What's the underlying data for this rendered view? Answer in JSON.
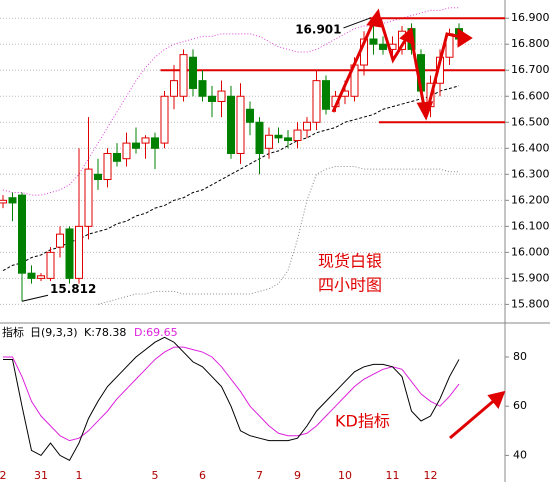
{
  "chart_data": {
    "type": "candlestick",
    "title": "现货白银",
    "subtitle": "四小时图",
    "categories": [
      "2",
      null,
      null,
      null,
      "31",
      null,
      null,
      null,
      "1",
      null,
      null,
      null,
      null,
      null,
      null,
      null,
      "5",
      null,
      null,
      null,
      null,
      "6",
      null,
      null,
      null,
      null,
      null,
      "7",
      null,
      null,
      null,
      "9",
      null,
      null,
      null,
      null,
      "10",
      null,
      null,
      null,
      null,
      "11",
      null,
      null,
      null,
      "12",
      null,
      null,
      null
    ],
    "open": [
      16.19,
      16.21,
      16.22,
      15.92,
      15.9,
      15.9,
      16.02,
      16.09,
      15.9,
      16.1,
      16.3,
      16.28,
      16.38,
      16.36,
      16.42,
      16.42,
      16.44,
      16.42,
      16.6,
      16.6,
      16.75,
      16.66,
      16.6,
      16.58,
      16.6,
      16.38,
      16.55,
      16.5,
      16.4,
      16.45,
      16.44,
      16.43,
      16.47,
      16.5,
      16.66,
      16.56,
      16.6,
      16.6,
      16.72,
      16.82,
      16.8,
      16.78,
      16.78,
      16.86,
      16.76,
      16.56,
      16.65,
      16.75,
      16.86
    ],
    "high": [
      16.22,
      16.23,
      16.23,
      15.95,
      15.92,
      16.02,
      16.1,
      16.1,
      16.4,
      16.52,
      16.36,
      16.4,
      16.42,
      16.46,
      16.48,
      16.45,
      16.46,
      16.62,
      16.72,
      16.78,
      16.78,
      16.7,
      16.64,
      16.66,
      16.64,
      16.65,
      16.58,
      16.52,
      16.48,
      16.48,
      16.47,
      16.5,
      16.52,
      16.7,
      16.68,
      16.62,
      16.66,
      16.75,
      16.85,
      16.901,
      16.83,
      16.83,
      16.87,
      16.88,
      16.78,
      16.68,
      16.78,
      16.86,
      16.88
    ],
    "low": [
      16.17,
      16.12,
      15.812,
      15.88,
      15.89,
      15.89,
      15.98,
      15.88,
      15.88,
      16.05,
      16.24,
      16.25,
      16.33,
      16.33,
      16.38,
      16.36,
      16.32,
      16.4,
      16.55,
      16.58,
      16.6,
      16.58,
      16.52,
      16.52,
      16.36,
      16.34,
      16.45,
      16.3,
      16.36,
      16.42,
      16.4,
      16.4,
      16.44,
      16.47,
      16.53,
      16.54,
      16.57,
      16.58,
      16.68,
      16.76,
      16.76,
      16.74,
      16.76,
      16.76,
      16.6,
      16.52,
      16.6,
      16.72,
      16.8
    ],
    "close": [
      16.2,
      16.19,
      15.92,
      15.9,
      15.91,
      16.0,
      16.07,
      15.9,
      16.1,
      16.32,
      16.28,
      16.38,
      16.35,
      16.42,
      16.4,
      16.44,
      16.4,
      16.6,
      16.66,
      16.76,
      16.63,
      16.6,
      16.58,
      16.62,
      16.38,
      16.6,
      16.5,
      16.38,
      16.45,
      16.44,
      16.43,
      16.47,
      16.5,
      16.66,
      16.55,
      16.6,
      16.62,
      16.72,
      16.82,
      16.8,
      16.78,
      16.8,
      16.85,
      16.78,
      16.62,
      16.65,
      16.75,
      16.84,
      16.82
    ],
    "high_labels": [
      null,
      null,
      null,
      null,
      null,
      null,
      null,
      null,
      null,
      null,
      null,
      null,
      null,
      null,
      null,
      null,
      null,
      null,
      null,
      null,
      null,
      null,
      null,
      null,
      null,
      null,
      null,
      null,
      null,
      null,
      null,
      null,
      null,
      null,
      null,
      null,
      null,
      null,
      null,
      "16.901",
      null,
      null,
      null,
      null,
      null,
      null,
      null,
      null,
      null
    ],
    "low_labels": [
      null,
      null,
      "15.812",
      null,
      null,
      null,
      null,
      null,
      null,
      null,
      null,
      null,
      null,
      null,
      null,
      null,
      null,
      null,
      null,
      null,
      null,
      null,
      null,
      null,
      null,
      null,
      null,
      null,
      null,
      null,
      null,
      null,
      null,
      null,
      null,
      null,
      null,
      null,
      null,
      null,
      null,
      null,
      null,
      null,
      null,
      null,
      null,
      null,
      null
    ],
    "up_color": "#e00000",
    "down_color": "#008000",
    "lines": [
      {
        "color": "#000000",
        "style": "dashed",
        "values": [
          15.93,
          15.95,
          15.96,
          15.98,
          15.99,
          16.01,
          16.02,
          16.04,
          16.05,
          16.07,
          16.08,
          16.09,
          16.11,
          16.12,
          16.14,
          16.15,
          16.17,
          16.18,
          16.2,
          16.21,
          16.23,
          16.24,
          16.26,
          16.28,
          16.3,
          16.32,
          16.34,
          16.36,
          16.38,
          16.39,
          16.41,
          16.43,
          16.44,
          16.46,
          16.47,
          16.48,
          16.5,
          16.51,
          16.52,
          16.53,
          16.55,
          16.56,
          16.57,
          16.58,
          16.59,
          16.6,
          16.62,
          16.63,
          16.64
        ]
      },
      {
        "color": "#dd44dd",
        "style": "dotted",
        "values": [
          16.24,
          16.23,
          16.23,
          16.22,
          16.22,
          16.23,
          16.24,
          16.26,
          16.3,
          16.36,
          16.42,
          16.48,
          16.54,
          16.6,
          16.66,
          16.71,
          16.75,
          16.78,
          16.8,
          16.81,
          16.82,
          16.83,
          16.83,
          16.84,
          16.84,
          16.84,
          16.84,
          16.83,
          16.81,
          16.79,
          16.78,
          16.77,
          16.77,
          16.78,
          16.8,
          16.82,
          16.84,
          16.86,
          16.87,
          16.87,
          16.88,
          16.89,
          16.9,
          16.91,
          16.92,
          16.93,
          16.93,
          16.94,
          16.94
        ]
      },
      {
        "color": "#888888",
        "style": "dotted",
        "values": [
          null,
          null,
          null,
          null,
          null,
          null,
          null,
          null,
          null,
          null,
          15.8,
          15.81,
          15.82,
          15.83,
          15.84,
          15.84,
          15.85,
          15.85,
          15.85,
          15.84,
          15.84,
          15.84,
          15.84,
          15.84,
          15.84,
          15.84,
          15.84,
          15.85,
          15.86,
          15.88,
          15.93,
          16.05,
          16.2,
          16.3,
          16.32,
          16.33,
          16.33,
          16.33,
          16.32,
          16.32,
          16.32,
          16.32,
          16.32,
          16.32,
          16.32,
          16.32,
          16.32,
          16.31,
          16.31
        ]
      }
    ],
    "levels": [
      {
        "value": 16.9,
        "from": 39
      },
      {
        "value": 16.7,
        "from": 17
      },
      {
        "value": 16.5,
        "from": 40
      }
    ],
    "level_color": "#e00000",
    "ylim": [
      15.74,
      16.97
    ],
    "yticks": [
      {
        "value": 16.9,
        "label": "16.900"
      },
      {
        "value": 16.8,
        "label": "16.800"
      },
      {
        "value": 16.7,
        "label": "16.700"
      },
      {
        "value": 16.6,
        "label": "16.600"
      },
      {
        "value": 16.5,
        "label": "16.500"
      },
      {
        "value": 16.4,
        "label": "16.400"
      },
      {
        "value": 16.3,
        "label": "16.300"
      },
      {
        "value": 16.2,
        "label": "16.200"
      },
      {
        "value": 16.1,
        "label": "16.100"
      },
      {
        "value": 16.0,
        "label": "16.000"
      },
      {
        "value": 15.9,
        "label": "15.900"
      },
      {
        "value": 15.8,
        "label": "15.800"
      }
    ],
    "grid": true,
    "indicator": {
      "label": "指标",
      "params": "日(9,3,3)",
      "k_label": "K:78.38",
      "d_label": "D:69.65",
      "note": "KD指标",
      "k_color": "#000000",
      "d_color": "#dd22dd",
      "k_values": [
        79,
        79,
        60,
        42,
        40,
        45,
        40,
        38,
        45,
        55,
        62,
        68,
        72,
        76,
        80,
        83,
        86,
        88,
        86,
        82,
        78,
        76,
        72,
        68,
        60,
        50,
        48,
        47,
        46,
        46,
        46,
        47,
        52,
        58,
        62,
        66,
        70,
        74,
        76,
        77,
        77,
        76,
        72,
        58,
        54,
        56,
        63,
        72,
        79
      ],
      "d_values": [
        80,
        80,
        72,
        62,
        56,
        52,
        48,
        46,
        47,
        50,
        54,
        58,
        63,
        67,
        71,
        75,
        79,
        82,
        84,
        84,
        83,
        82,
        80,
        76,
        71,
        66,
        60,
        56,
        52,
        49,
        48,
        48,
        49,
        52,
        56,
        60,
        64,
        68,
        71,
        73,
        75,
        76,
        75,
        70,
        65,
        62,
        60,
        64,
        69
      ],
      "ylim": [
        30,
        93
      ],
      "yticks": [
        80,
        60,
        40
      ]
    }
  }
}
